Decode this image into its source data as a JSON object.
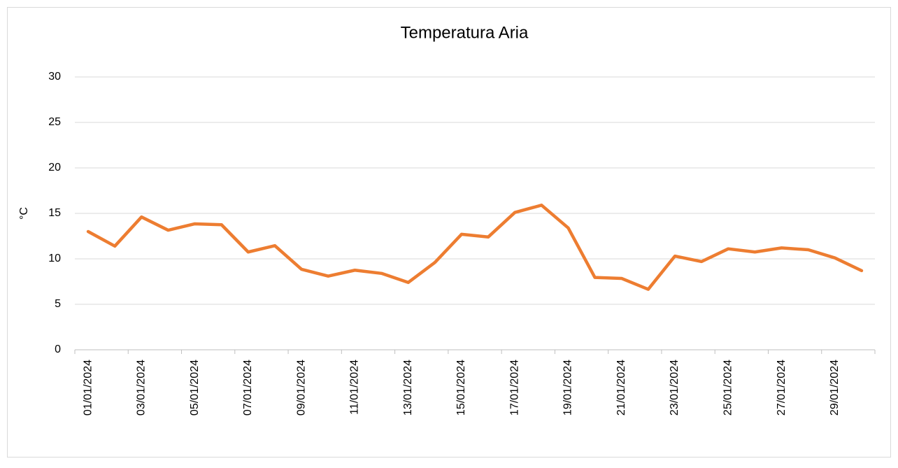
{
  "chart_data": {
    "type": "line",
    "title": "Temperatura Aria",
    "y_label": "°C",
    "categories": [
      "01/01/2024",
      null,
      "03/01/2024",
      null,
      "05/01/2024",
      null,
      "07/01/2024",
      null,
      "09/01/2024",
      null,
      "11/01/2024",
      null,
      "13/01/2024",
      null,
      "15/01/2024",
      null,
      "17/01/2024",
      null,
      "19/01/2024",
      null,
      "21/01/2024",
      null,
      "23/01/2024",
      null,
      "25/01/2024",
      null,
      "27/01/2024",
      null,
      "29/01/2024",
      null
    ],
    "series": [
      {
        "name": "Temperatura Aria",
        "color": "#ed7d31",
        "values": [
          13.0,
          11.4,
          14.6,
          13.15,
          13.85,
          13.75,
          10.75,
          11.45,
          8.85,
          8.1,
          8.75,
          8.4,
          7.4,
          9.6,
          12.7,
          12.4,
          15.1,
          15.9,
          13.4,
          7.95,
          7.85,
          6.65,
          10.3,
          9.7,
          11.1,
          10.75,
          11.2,
          11.0,
          10.1,
          8.7
        ]
      }
    ],
    "ylim": [
      0,
      30
    ],
    "yticks": [
      0,
      5,
      10,
      15,
      20,
      25,
      30
    ],
    "grid": true
  }
}
